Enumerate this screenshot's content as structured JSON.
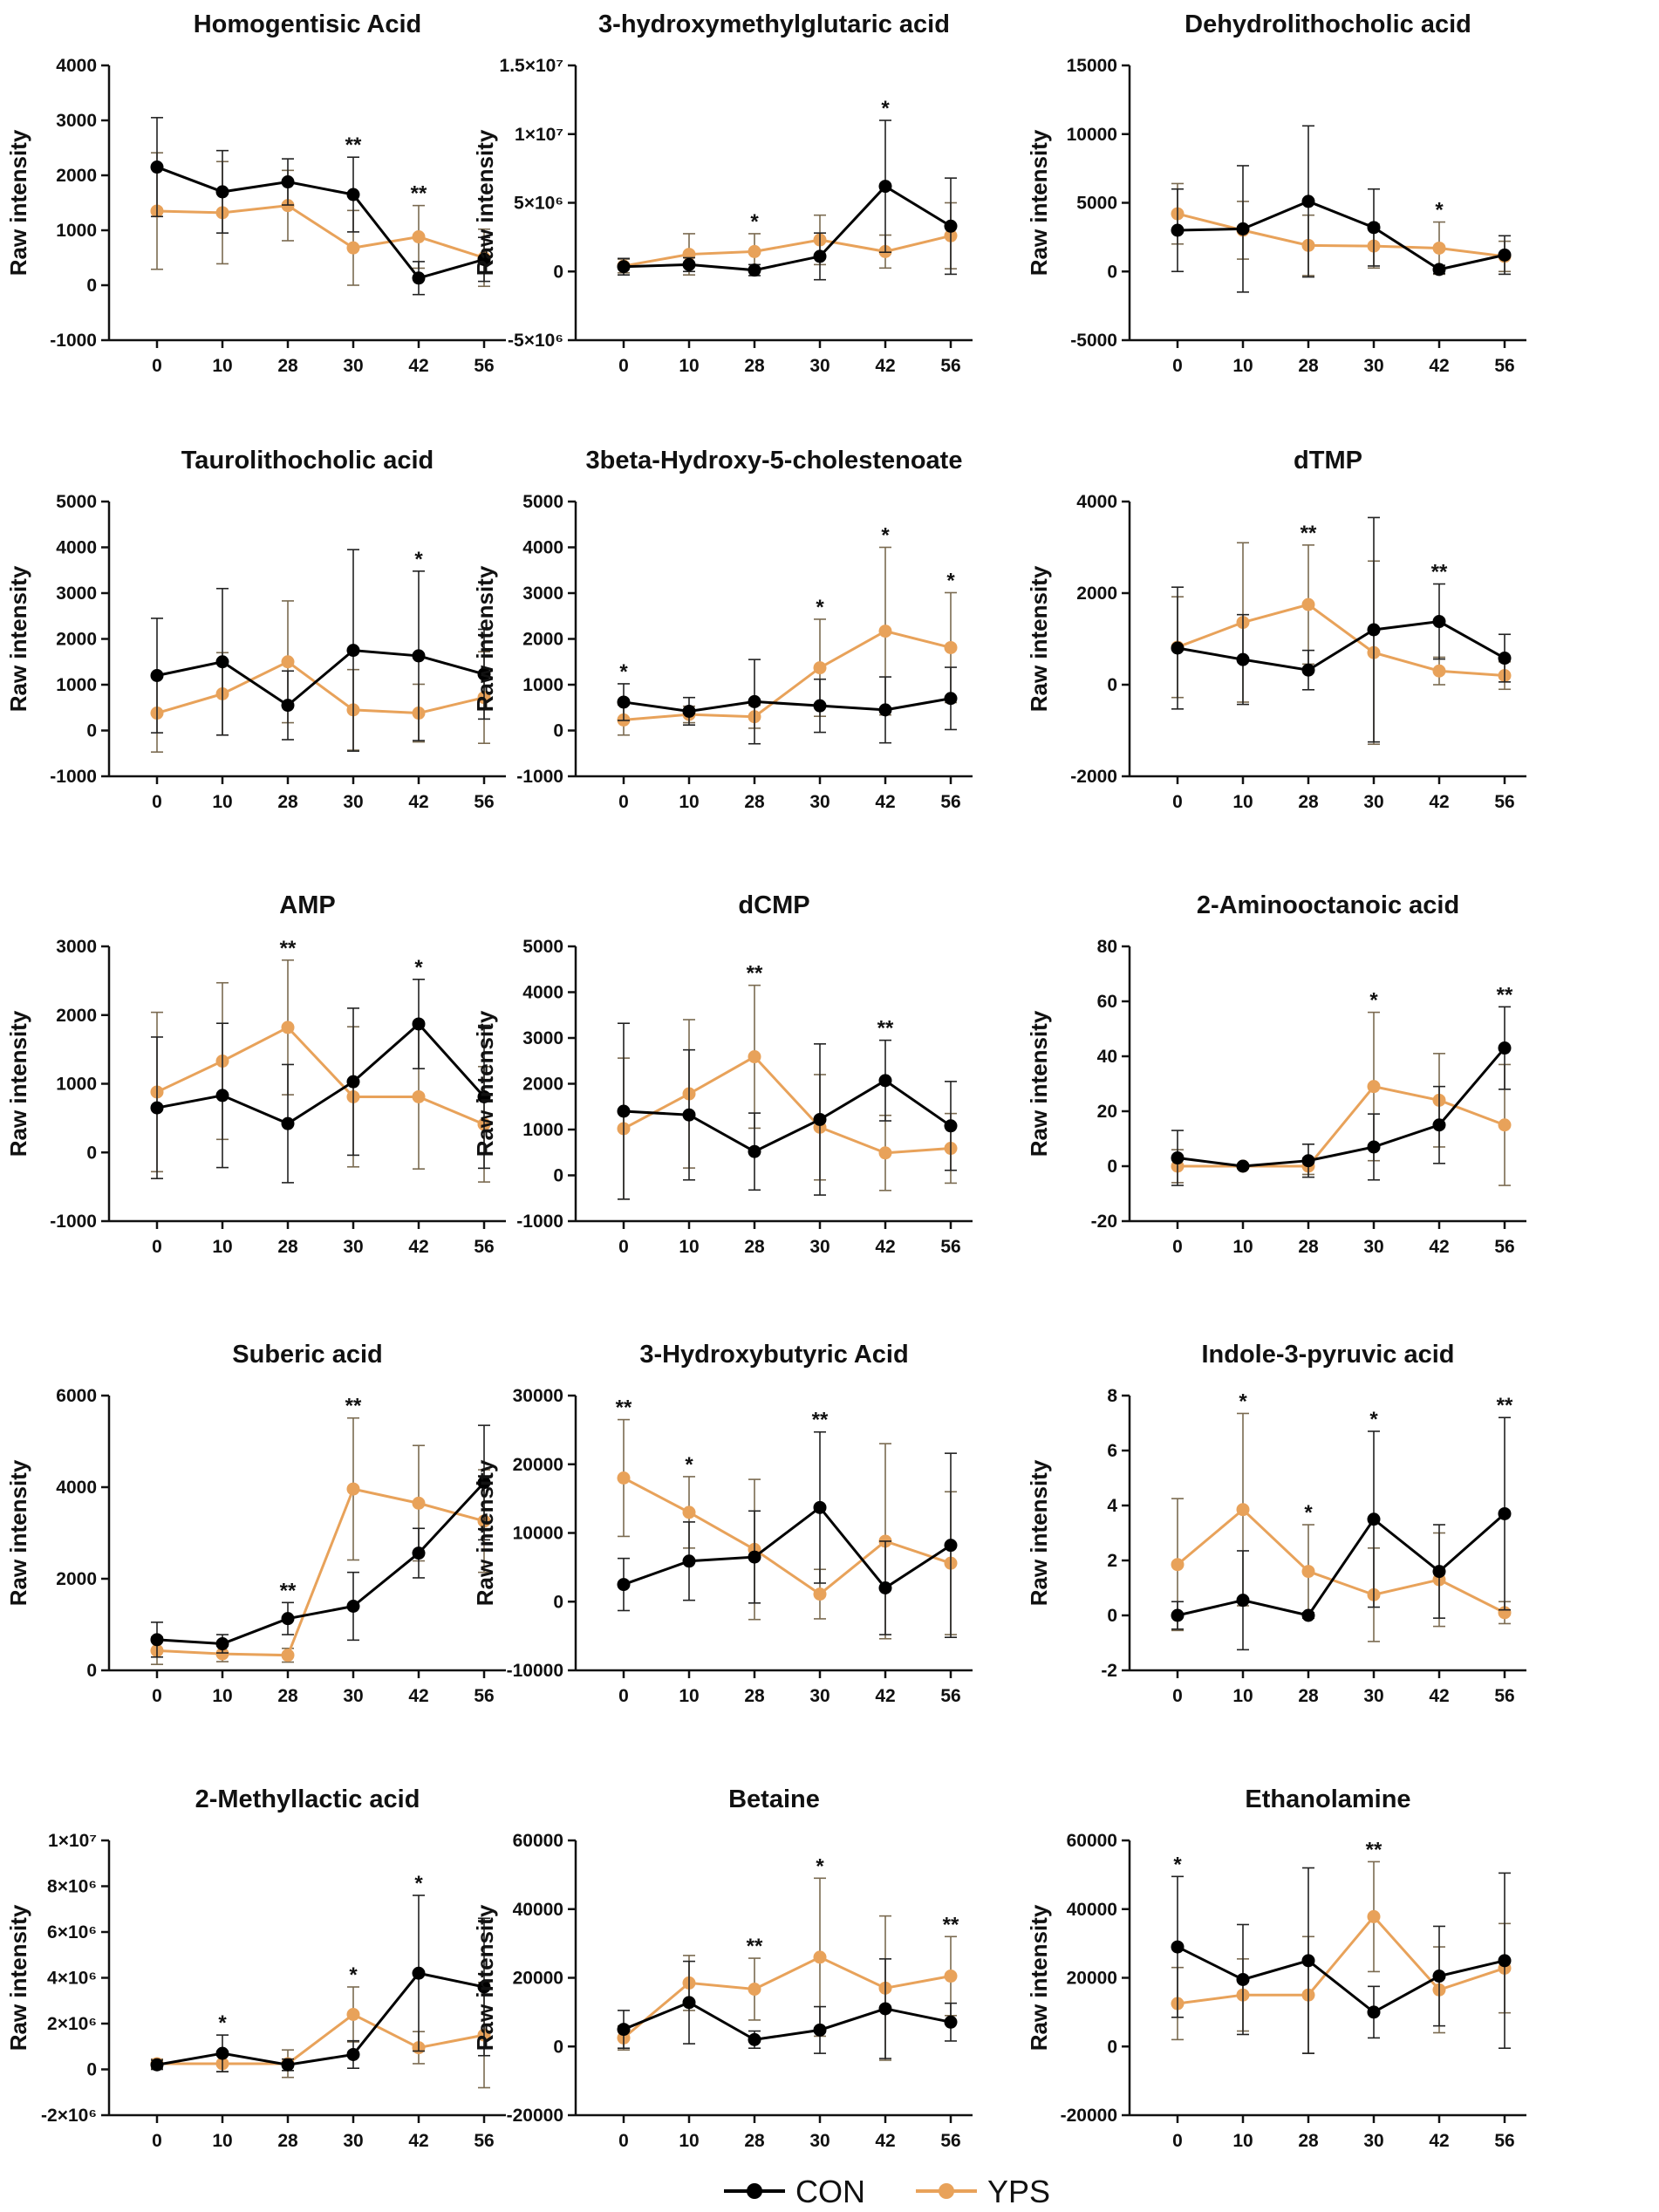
{
  "legend": {
    "con_label": "CON",
    "yps_label": "YPS"
  },
  "colors": {
    "con": "#000000",
    "yps": "#E8A25A",
    "err_yps": "#7A6A50"
  },
  "chart_data": [
    {
      "type": "line",
      "title": "Homogentisic Acid",
      "ylabel": "Raw intensity",
      "xlabel": "",
      "categories": [
        "0",
        "10",
        "28",
        "30",
        "42",
        "56"
      ],
      "ylim": [
        -1000,
        4000
      ],
      "yticks": [
        "4000",
        "3000",
        "2000",
        "1000",
        "0",
        "-1000"
      ],
      "series": [
        {
          "name": "CON",
          "values": [
            2150,
            1700,
            1880,
            1650,
            130,
            470
          ],
          "err": [
            900,
            750,
            420,
            680,
            300,
            400
          ]
        },
        {
          "name": "YPS",
          "values": [
            1350,
            1320,
            1450,
            680,
            880,
            500
          ],
          "err": [
            1060,
            930,
            640,
            680,
            570,
            520
          ]
        }
      ],
      "significance": [
        {
          "category": "30",
          "label": "**"
        },
        {
          "category": "42",
          "label": "**"
        }
      ]
    },
    {
      "type": "line",
      "title": "3-hydroxymethylglutaric acid",
      "ylabel": "Raw intensity",
      "xlabel": "",
      "categories": [
        "0",
        "10",
        "28",
        "30",
        "42",
        "56"
      ],
      "ylim": [
        -5000000,
        15000000
      ],
      "yticks": [
        "1.5×10⁷",
        "1×10⁷",
        "5×10⁶",
        "0",
        "-5×10⁶"
      ],
      "series": [
        {
          "name": "CON",
          "values": [
            350000,
            500000,
            100000,
            1100000,
            6200000,
            3300000
          ],
          "err": [
            600000,
            500000,
            400000,
            1700000,
            4800000,
            3500000
          ]
        },
        {
          "name": "YPS",
          "values": [
            400000,
            1250000,
            1450000,
            2300000,
            1450000,
            2600000
          ],
          "err": [
            500000,
            1500000,
            1300000,
            1800000,
            1200000,
            2400000
          ]
        }
      ],
      "significance": [
        {
          "category": "28",
          "label": "*"
        },
        {
          "category": "42",
          "label": "*"
        }
      ]
    },
    {
      "type": "line",
      "title": "Dehydrolithocholic acid",
      "ylabel": "Raw intensity",
      "xlabel": "",
      "categories": [
        "0",
        "10",
        "28",
        "30",
        "42",
        "56"
      ],
      "ylim": [
        -5000,
        15000
      ],
      "yticks": [
        "15000",
        "10000",
        "5000",
        "0",
        "-5000"
      ],
      "series": [
        {
          "name": "CON",
          "values": [
            3000,
            3100,
            5100,
            3200,
            150,
            1200
          ],
          "err": [
            3000,
            4600,
            5500,
            2800,
            300,
            1400
          ]
        },
        {
          "name": "YPS",
          "values": [
            4200,
            3000,
            1900,
            1850,
            1700,
            1100
          ],
          "err": [
            2200,
            2100,
            2200,
            1600,
            1900,
            1100
          ]
        }
      ],
      "significance": [
        {
          "category": "42",
          "label": "*"
        }
      ]
    },
    {
      "type": "line",
      "title": "Taurolithocholic acid",
      "ylabel": "Raw intensity",
      "xlabel": "",
      "categories": [
        "0",
        "10",
        "28",
        "30",
        "42",
        "56"
      ],
      "ylim": [
        -1000,
        5000
      ],
      "yticks": [
        "5000",
        "4000",
        "3000",
        "2000",
        "1000",
        "0",
        "-1000"
      ],
      "series": [
        {
          "name": "CON",
          "values": [
            1200,
            1500,
            550,
            1750,
            1630,
            1230
          ],
          "err": [
            1250,
            1600,
            750,
            2200,
            1850,
            980
          ]
        },
        {
          "name": "YPS",
          "values": [
            380,
            800,
            1500,
            450,
            380,
            720
          ],
          "err": [
            850,
            900,
            1330,
            880,
            630,
            1000
          ]
        }
      ],
      "significance": [
        {
          "category": "42",
          "label": "*"
        }
      ]
    },
    {
      "type": "line",
      "title": "3beta-Hydroxy-5-cholestenoate",
      "ylabel": "Raw intensity",
      "xlabel": "",
      "categories": [
        "0",
        "10",
        "28",
        "30",
        "42",
        "56"
      ],
      "ylim": [
        -1000,
        5000
      ],
      "yticks": [
        "5000",
        "4000",
        "3000",
        "2000",
        "1000",
        "0",
        "-1000"
      ],
      "series": [
        {
          "name": "CON",
          "values": [
            620,
            420,
            630,
            540,
            450,
            700
          ],
          "err": [
            400,
            300,
            920,
            580,
            720,
            680
          ]
        },
        {
          "name": "YPS",
          "values": [
            230,
            350,
            300,
            1370,
            2170,
            1810
          ],
          "err": [
            330,
            180,
            250,
            1060,
            1830,
            1200
          ]
        }
      ],
      "significance": [
        {
          "category": "0",
          "label": "*"
        },
        {
          "category": "30",
          "label": "*"
        },
        {
          "category": "42",
          "label": "*"
        },
        {
          "category": "56",
          "label": "*"
        }
      ]
    },
    {
      "type": "line",
      "title": "dTMP",
      "ylabel": "Raw intensity",
      "xlabel": "",
      "categories": [
        "0",
        "10",
        "28",
        "30",
        "42",
        "56"
      ],
      "ylim": [
        -2000,
        4000
      ],
      "yticks": [
        "4000",
        "2000",
        "0",
        "-2000"
      ],
      "series": [
        {
          "name": "CON",
          "values": [
            800,
            550,
            320,
            1200,
            1380,
            580
          ],
          "err": [
            1330,
            980,
            430,
            2450,
            820,
            520
          ]
        },
        {
          "name": "YPS",
          "values": [
            820,
            1360,
            1750,
            700,
            300,
            200
          ],
          "err": [
            1100,
            1740,
            1300,
            2000,
            300,
            300
          ]
        }
      ],
      "significance": [
        {
          "category": "28",
          "label": "**"
        },
        {
          "category": "42",
          "label": "**"
        }
      ]
    },
    {
      "type": "line",
      "title": "AMP",
      "ylabel": "Raw intensity",
      "xlabel": "",
      "categories": [
        "0",
        "10",
        "28",
        "30",
        "42",
        "56"
      ],
      "ylim": [
        -1000,
        3000
      ],
      "yticks": [
        "3000",
        "2000",
        "1000",
        "0",
        "-1000"
      ],
      "series": [
        {
          "name": "CON",
          "values": [
            650,
            830,
            420,
            1030,
            1870,
            810
          ],
          "err": [
            1030,
            1050,
            860,
            1070,
            650,
            1040
          ]
        },
        {
          "name": "YPS",
          "values": [
            880,
            1330,
            1820,
            810,
            810,
            410
          ],
          "err": [
            1160,
            1140,
            980,
            1020,
            1050,
            840
          ]
        }
      ],
      "significance": [
        {
          "category": "28",
          "label": "**"
        },
        {
          "category": "42",
          "label": "*"
        }
      ]
    },
    {
      "type": "line",
      "title": "dCMP",
      "ylabel": "Raw intensity",
      "xlabel": "",
      "categories": [
        "0",
        "10",
        "28",
        "30",
        "42",
        "56"
      ],
      "ylim": [
        -1000,
        5000
      ],
      "yticks": [
        "5000",
        "4000",
        "3000",
        "2000",
        "1000",
        "0",
        "-1000"
      ],
      "series": [
        {
          "name": "CON",
          "values": [
            1400,
            1320,
            520,
            1220,
            2070,
            1080
          ],
          "err": [
            1920,
            1420,
            840,
            1650,
            880,
            970
          ]
        },
        {
          "name": "YPS",
          "values": [
            1020,
            1780,
            2590,
            1050,
            490,
            590
          ],
          "err": [
            1540,
            1620,
            1560,
            1150,
            820,
            760
          ]
        }
      ],
      "significance": [
        {
          "category": "28",
          "label": "**"
        },
        {
          "category": "42",
          "label": "**"
        }
      ]
    },
    {
      "type": "line",
      "title": "2-Aminooctanoic acid",
      "ylabel": "Raw intensity",
      "xlabel": "",
      "categories": [
        "0",
        "10",
        "28",
        "30",
        "42",
        "56"
      ],
      "ylim": [
        -20,
        80
      ],
      "yticks": [
        "80",
        "60",
        "40",
        "20",
        "0",
        "-20"
      ],
      "series": [
        {
          "name": "CON",
          "values": [
            3,
            0,
            2,
            7,
            15,
            43
          ],
          "err": [
            10,
            0.6,
            6,
            12,
            14,
            15
          ]
        },
        {
          "name": "YPS",
          "values": [
            0,
            0,
            0,
            29,
            24,
            15
          ],
          "err": [
            6,
            0.6,
            3,
            27,
            17,
            22
          ]
        }
      ],
      "significance": [
        {
          "category": "30",
          "label": "*"
        },
        {
          "category": "56",
          "label": "**"
        }
      ]
    },
    {
      "type": "line",
      "title": "Suberic acid",
      "ylabel": "Raw intensity",
      "xlabel": "",
      "categories": [
        "0",
        "10",
        "28",
        "30",
        "42",
        "56"
      ],
      "ylim": [
        0,
        6000
      ],
      "yticks": [
        "6000",
        "4000",
        "2000",
        "0"
      ],
      "series": [
        {
          "name": "CON",
          "values": [
            670,
            580,
            1130,
            1400,
            2560,
            4100
          ],
          "err": [
            380,
            200,
            350,
            740,
            540,
            1250
          ]
        },
        {
          "name": "YPS",
          "values": [
            430,
            360,
            330,
            3960,
            3650,
            3260
          ],
          "err": [
            300,
            170,
            150,
            1550,
            1260,
            1120
          ]
        }
      ],
      "significance": [
        {
          "category": "28",
          "label": "**"
        },
        {
          "category": "30",
          "label": "**"
        }
      ]
    },
    {
      "type": "line",
      "title": "3-Hydroxybutyric Acid",
      "ylabel": "Raw intensity",
      "xlabel": "",
      "categories": [
        "0",
        "10",
        "28",
        "30",
        "42",
        "56"
      ],
      "ylim": [
        -10000,
        30000
      ],
      "yticks": [
        "30000",
        "20000",
        "10000",
        "0",
        "-10000"
      ],
      "series": [
        {
          "name": "CON",
          "values": [
            2500,
            5900,
            6500,
            13700,
            2000,
            8200
          ],
          "err": [
            3800,
            5700,
            6700,
            11000,
            6800,
            13400
          ]
        },
        {
          "name": "YPS",
          "values": [
            18000,
            13000,
            7600,
            1100,
            8800,
            5600
          ],
          "err": [
            8500,
            5200,
            10200,
            3600,
            14200,
            10400
          ]
        }
      ],
      "significance": [
        {
          "category": "0",
          "label": "**"
        },
        {
          "category": "10",
          "label": "*"
        },
        {
          "category": "30",
          "label": "**"
        }
      ]
    },
    {
      "type": "line",
      "title": "Indole-3-pyruvic acid",
      "ylabel": "Raw intensity",
      "xlabel": "",
      "categories": [
        "0",
        "10",
        "28",
        "30",
        "42",
        "56"
      ],
      "ylim": [
        -2,
        8
      ],
      "yticks": [
        "8",
        "6",
        "4",
        "2",
        "0",
        "-2"
      ],
      "series": [
        {
          "name": "CON",
          "values": [
            0,
            0.55,
            0,
            3.5,
            1.6,
            3.7
          ],
          "err": [
            0.5,
            1.8,
            0.1,
            3.2,
            1.7,
            3.5
          ]
        },
        {
          "name": "YPS",
          "values": [
            1.85,
            3.85,
            1.6,
            0.75,
            1.3,
            0.1
          ],
          "err": [
            2.4,
            3.5,
            1.7,
            1.7,
            1.7,
            0.4
          ]
        }
      ],
      "significance": [
        {
          "category": "10",
          "label": "*"
        },
        {
          "category": "28",
          "label": "*"
        },
        {
          "category": "30",
          "label": "*"
        },
        {
          "category": "56",
          "label": "**"
        }
      ]
    },
    {
      "type": "line",
      "title": "2-Methyllactic acid",
      "ylabel": "Raw intensity",
      "xlabel": "",
      "categories": [
        "0",
        "10",
        "28",
        "30",
        "42",
        "56"
      ],
      "ylim": [
        -2000000,
        10000000
      ],
      "yticks": [
        "1×10⁷",
        "8×10⁶",
        "6×10⁶",
        "4×10⁶",
        "2×10⁶",
        "0",
        "-2×10⁶"
      ],
      "series": [
        {
          "name": "CON",
          "values": [
            200000,
            700000,
            200000,
            650000,
            4200000,
            3600000
          ],
          "err": [
            200000,
            800000,
            250000,
            600000,
            3400000,
            3000000
          ]
        },
        {
          "name": "YPS",
          "values": [
            250000,
            250000,
            250000,
            2400000,
            950000,
            1500000
          ],
          "err": [
            200000,
            350000,
            600000,
            1200000,
            700000,
            2300000
          ]
        }
      ],
      "significance": [
        {
          "category": "10",
          "label": "*"
        },
        {
          "category": "30",
          "label": "*"
        },
        {
          "category": "42",
          "label": "*"
        }
      ]
    },
    {
      "type": "line",
      "title": "Betaine",
      "ylabel": "Raw intensity",
      "xlabel": "",
      "categories": [
        "0",
        "10",
        "28",
        "30",
        "42",
        "56"
      ],
      "ylim": [
        -20000,
        60000
      ],
      "yticks": [
        "60000",
        "40000",
        "20000",
        "0",
        "-20000"
      ],
      "series": [
        {
          "name": "CON",
          "values": [
            5000,
            12800,
            2000,
            4800,
            11000,
            7100
          ],
          "err": [
            5500,
            12000,
            2500,
            6800,
            14500,
            5500
          ]
        },
        {
          "name": "YPS",
          "values": [
            2500,
            18500,
            16700,
            26000,
            17000,
            20500
          ],
          "err": [
            3500,
            8000,
            9000,
            23000,
            21000,
            11500
          ]
        }
      ],
      "significance": [
        {
          "category": "28",
          "label": "**"
        },
        {
          "category": "30",
          "label": "*"
        },
        {
          "category": "56",
          "label": "**"
        }
      ]
    },
    {
      "type": "line",
      "title": "Ethanolamine",
      "ylabel": "Raw intensity",
      "xlabel": "",
      "categories": [
        "0",
        "10",
        "28",
        "30",
        "42",
        "56"
      ],
      "ylim": [
        -20000,
        60000
      ],
      "yticks": [
        "60000",
        "40000",
        "20000",
        "0",
        "-20000"
      ],
      "series": [
        {
          "name": "CON",
          "values": [
            29000,
            19500,
            25000,
            10000,
            20500,
            25000
          ],
          "err": [
            20500,
            16000,
            27000,
            7500,
            14500,
            25500
          ]
        },
        {
          "name": "YPS",
          "values": [
            12500,
            15000,
            15000,
            37800,
            16500,
            22800
          ],
          "err": [
            10500,
            10500,
            17000,
            16000,
            12500,
            13000
          ]
        }
      ],
      "significance": [
        {
          "category": "0",
          "label": "*"
        },
        {
          "category": "30",
          "label": "**"
        }
      ]
    }
  ]
}
